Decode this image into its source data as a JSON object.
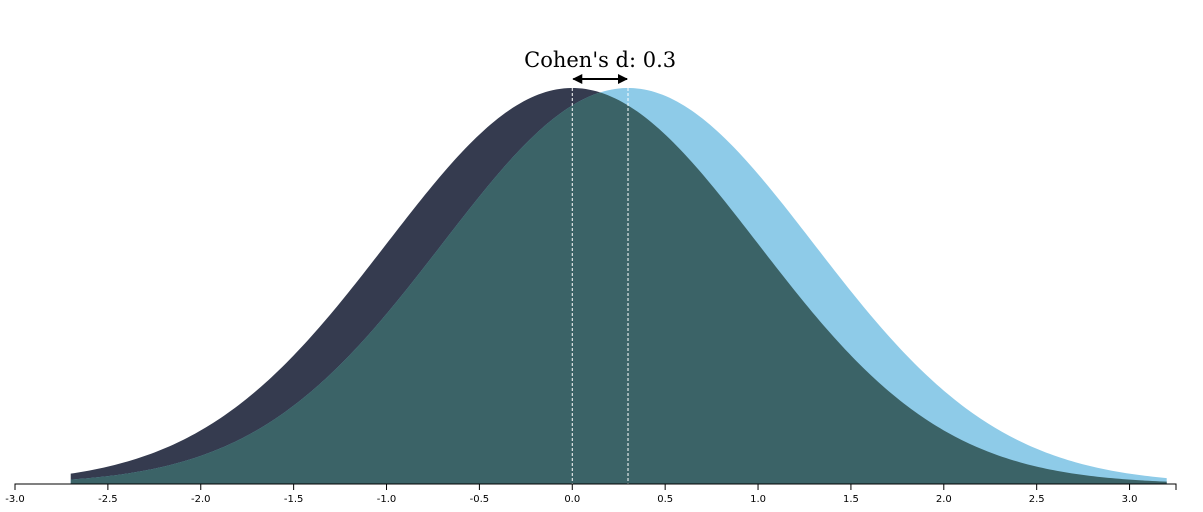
{
  "chart_data": {
    "type": "area",
    "title": "",
    "xlabel": "",
    "ylabel": "",
    "xlim": [
      -3.0,
      3.25
    ],
    "grid": false,
    "legend": "none",
    "x_ticks": [
      -3.0,
      -2.5,
      -2.0,
      -1.5,
      -1.0,
      -0.5,
      0.0,
      0.5,
      1.0,
      1.5,
      2.0,
      2.5,
      3.0
    ],
    "x_tick_labels": [
      "-3.0",
      "-2.5",
      "-2.0",
      "-1.5",
      "-1.0",
      "-0.5",
      "0.0",
      "0.5",
      "1.0",
      "1.5",
      "2.0",
      "2.5",
      "3.0"
    ],
    "series": [
      {
        "distribution": "normal",
        "mean": 0.0,
        "sd": 1.0,
        "color": "#353b4f"
      },
      {
        "distribution": "normal",
        "mean": 0.3,
        "sd": 1.0,
        "color": "#8ecbe8"
      }
    ],
    "overlap_color": "#3b6367",
    "annotation": {
      "text": "Cohen's d: 0.3",
      "from": 0.0,
      "to": 0.3
    }
  }
}
